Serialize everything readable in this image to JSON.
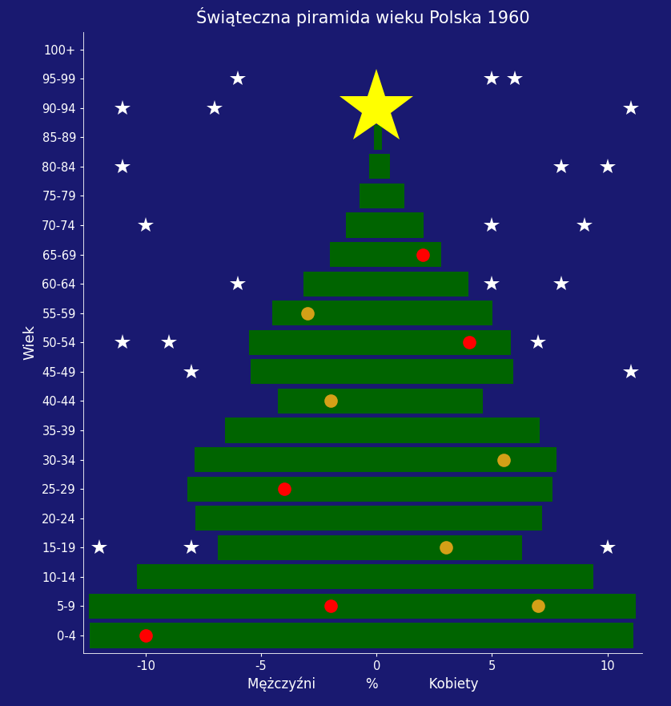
{
  "chart_data": {
    "type": "bar",
    "orientation": "horizontal",
    "stacked": false,
    "grid": false,
    "title": "Świąteczna piramida wieku Polska 1960",
    "xlabel": "Mężczyźni            %            Kobiety",
    "ylabel": "Wiek",
    "categories": [
      "0-4",
      "5-9",
      "10-14",
      "15-19",
      "20-24",
      "25-29",
      "30-34",
      "35-39",
      "40-44",
      "45-49",
      "50-54",
      "55-59",
      "60-64",
      "65-69",
      "70-74",
      "75-79",
      "80-84",
      "85-89",
      "90-94",
      "95-99",
      "100+"
    ],
    "xlim": [
      -12.7,
      11.5
    ],
    "xticks": [
      -10,
      -5,
      0,
      5,
      10
    ],
    "series": [
      {
        "name": "Mężczyźni",
        "type": "bar",
        "color": "#006400",
        "values": [
          -12.41,
          -12.44,
          -10.36,
          -6.86,
          -7.83,
          -8.18,
          -7.87,
          -6.55,
          -4.26,
          -5.44,
          -5.51,
          -4.51,
          -3.15,
          -2.01,
          -1.32,
          -0.73,
          -0.31,
          -0.1,
          0,
          0,
          0
        ]
      },
      {
        "name": "Kobiety",
        "type": "bar",
        "color": "#006400",
        "values": [
          11.13,
          11.23,
          9.39,
          6.31,
          7.17,
          7.63,
          7.8,
          7.07,
          4.61,
          5.93,
          5.82,
          5.03,
          3.99,
          2.81,
          2.05,
          1.21,
          0.59,
          0.24,
          0,
          0,
          0
        ]
      },
      {
        "type": "scatter",
        "marker": "circle",
        "color": "#ff0000",
        "x": [
          2,
          4,
          -4,
          -2,
          -10
        ],
        "y": [
          "65-69",
          "50-54",
          "25-29",
          "5-9",
          "0-4"
        ]
      },
      {
        "type": "scatter",
        "marker": "circle",
        "color": "#d4a017",
        "x": [
          -3,
          -2,
          5.5,
          3,
          7
        ],
        "y": [
          "55-59",
          "40-44",
          "30-34",
          "15-19",
          "5-9"
        ]
      },
      {
        "type": "scatter",
        "marker": "star",
        "color": "#ffffff",
        "x": [
          -6,
          5,
          6,
          -11,
          -7,
          11,
          -11,
          8,
          10,
          -10,
          5,
          9,
          -6,
          5,
          8,
          -11,
          -9,
          7,
          -8,
          11,
          -12,
          -8,
          10
        ],
        "y": [
          "95-99",
          "95-99",
          "95-99",
          "90-94",
          "90-94",
          "90-94",
          "80-84",
          "80-84",
          "80-84",
          "70-74",
          "70-74",
          "70-74",
          "60-64",
          "60-64",
          "60-64",
          "50-54",
          "50-54",
          "50-54",
          "45-49",
          "45-49",
          "15-19",
          "15-19",
          "15-19"
        ]
      },
      {
        "type": "scatter",
        "marker": "big_star",
        "color": "#ffff00",
        "x": [
          0
        ],
        "y": [
          "90-94"
        ]
      }
    ]
  }
}
